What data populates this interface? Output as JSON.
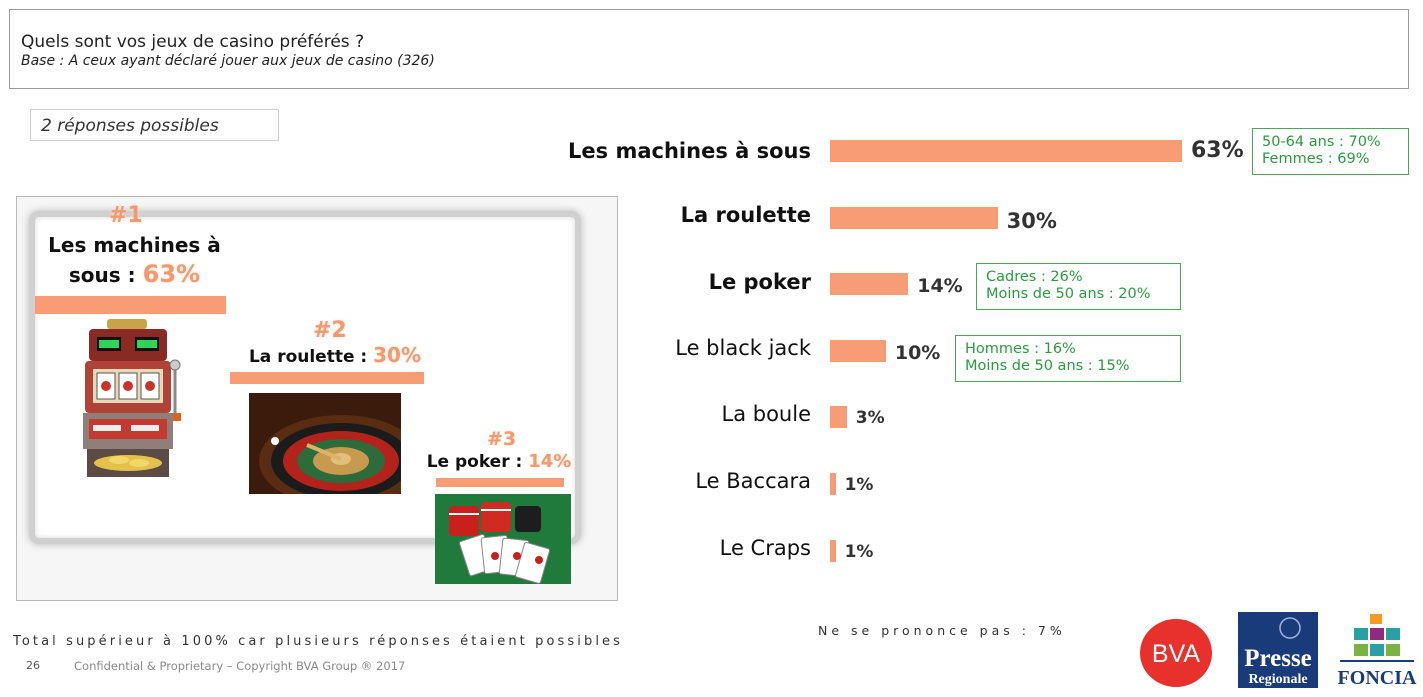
{
  "header": {
    "title": "Quels sont vos jeux de casino préférés ?",
    "base": "Base : A ceux ayant déclaré jouer aux jeux de casino (326)"
  },
  "responses_note": "2 réponses possibles",
  "podium": [
    {
      "rank": "#1",
      "label_line1": "Les machines à",
      "label_line2": "sous :",
      "pct": "63%"
    },
    {
      "rank": "#2",
      "label": "La roulette :",
      "pct": "30%"
    },
    {
      "rank": "#3",
      "label": "Le poker :",
      "pct": "14%"
    }
  ],
  "chart_data": {
    "type": "bar",
    "orientation": "horizontal",
    "categories": [
      "Les machines à sous",
      "La roulette",
      "Le poker",
      "Le black jack",
      "La boule",
      "Le Baccara",
      "Le Craps"
    ],
    "values": [
      63,
      30,
      14,
      10,
      3,
      1,
      1
    ],
    "value_labels": [
      "63%",
      "30%",
      "14%",
      "10%",
      "3%",
      "1%",
      "1%"
    ],
    "xlim": [
      0,
      63
    ],
    "grid": false,
    "bar_color": "#f79c75"
  },
  "notes": [
    {
      "line1": "50-64 ans : 70%",
      "line2": "Femmes : 69%"
    },
    {
      "line1": "Cadres : 26%",
      "line2": "Moins de 50 ans : 20%"
    },
    {
      "line1": "Hommes : 16%",
      "line2": "Moins de 50 ans : 15%"
    }
  ],
  "footer": {
    "total_note": "Total supérieur à 100% car plusieurs réponses étaient possibles",
    "no_answer": "Ne se prononce pas : 7%",
    "page": "26",
    "copyright": "Confidential & Proprietary – Copyright BVA Group ®  2017"
  },
  "logos": {
    "bva": "BVA",
    "presse_line1": "Presse",
    "presse_line2": "Regionale",
    "foncia": "FONCIA"
  },
  "colors": {
    "accent": "#f79c75",
    "note_green": "#2b9a3f",
    "bva_red": "#e8312c",
    "presse_navy": "#1a3b7a"
  }
}
